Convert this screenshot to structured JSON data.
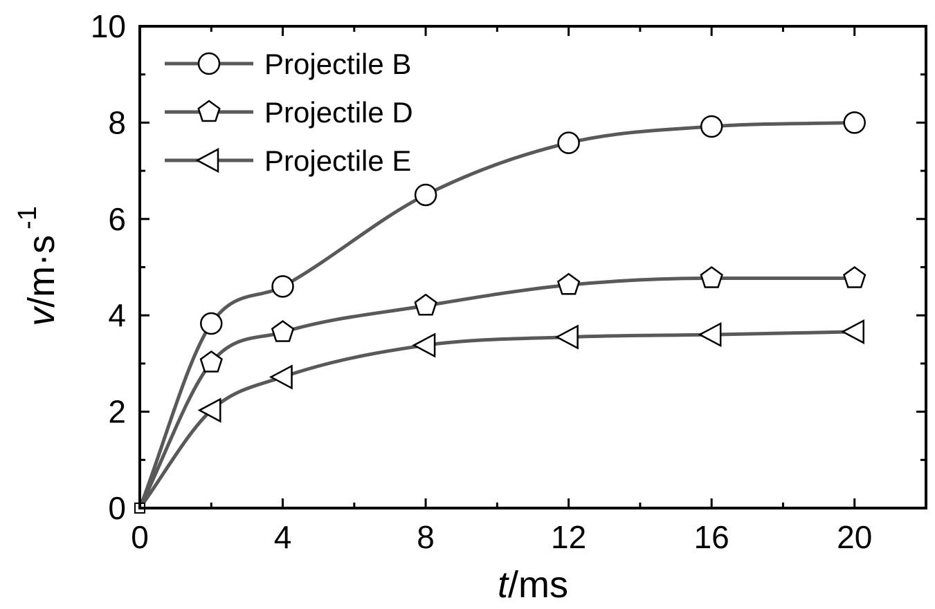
{
  "chart_data": {
    "type": "line",
    "title": "",
    "xlabel_italic": "t",
    "xlabel_rest": "/ms",
    "ylabel_italic": "v",
    "ylabel_rest": "/m·s",
    "ylabel_sup": "-1",
    "xlim": [
      0,
      22
    ],
    "ylim": [
      0,
      10
    ],
    "x_ticks": [
      0,
      4,
      8,
      12,
      16,
      20
    ],
    "y_ticks": [
      0,
      2,
      4,
      6,
      8,
      10
    ],
    "x_tick_labels": [
      "0",
      "4",
      "8",
      "12",
      "16",
      "20"
    ],
    "y_tick_labels": [
      "0",
      "2",
      "4",
      "6",
      "8",
      "10"
    ],
    "legend_position": "top-left",
    "line_color": "#595959",
    "series": [
      {
        "name": "Projectile B",
        "marker": "circle",
        "x": [
          0,
          2,
          4,
          8,
          12,
          16,
          20
        ],
        "y": [
          0,
          3.83,
          4.6,
          6.5,
          7.58,
          7.92,
          8.0
        ]
      },
      {
        "name": "Projectile D",
        "marker": "pentagon",
        "x": [
          0,
          2,
          4,
          8,
          12,
          16,
          20
        ],
        "y": [
          0,
          3.02,
          3.65,
          4.2,
          4.63,
          4.77,
          4.77
        ]
      },
      {
        "name": "Projectile E",
        "marker": "triangle-left",
        "x": [
          0,
          2,
          4,
          8,
          12,
          16,
          20
        ],
        "y": [
          0,
          2.03,
          2.72,
          3.38,
          3.55,
          3.6,
          3.66
        ]
      }
    ]
  }
}
